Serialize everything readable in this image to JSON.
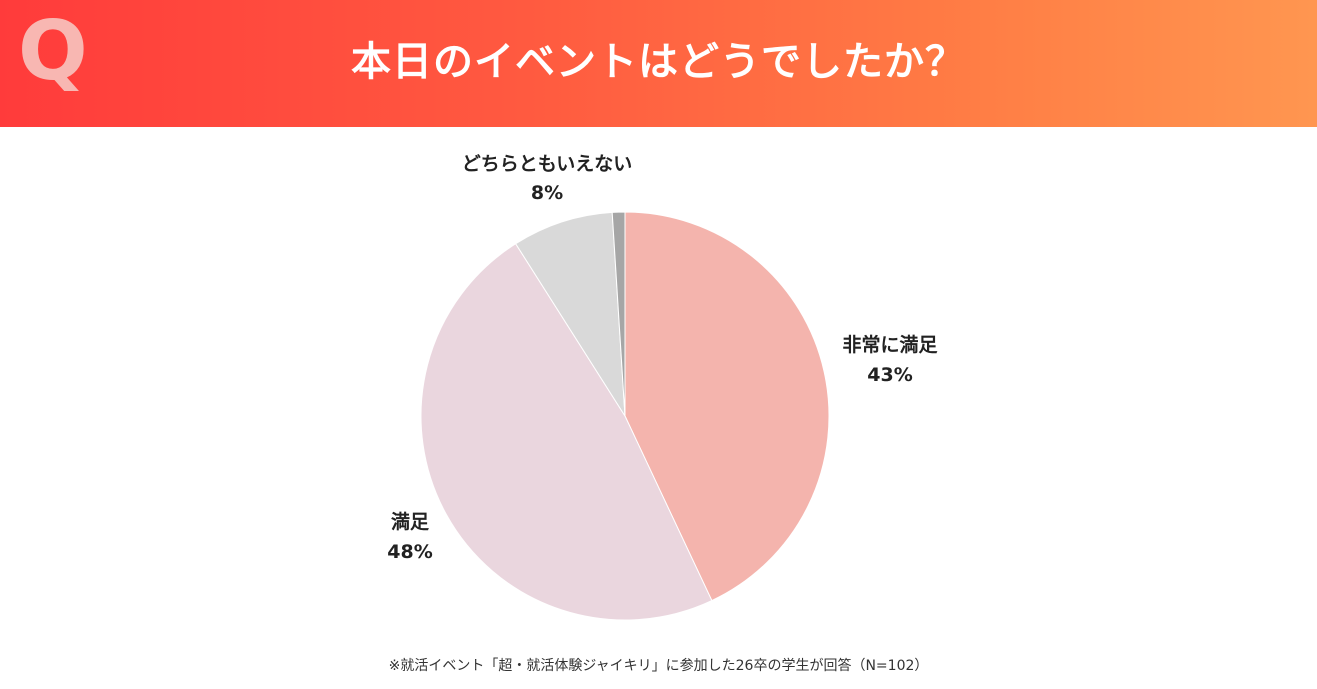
{
  "header": {
    "q_mark": "Q",
    "title": "本日のイベントはどうでしたか？"
  },
  "chart_data": {
    "type": "pie",
    "title": "本日のイベントはどうでしたか？",
    "slices": [
      {
        "label": "非常に満足",
        "value": 43,
        "value_label": "43%",
        "color": "#f4b4ad"
      },
      {
        "label": "満足",
        "value": 48,
        "value_label": "48%",
        "color": "#ead6de"
      },
      {
        "label": "どちらともいえない",
        "value": 8,
        "value_label": "8%",
        "color": "#d9d9d9"
      },
      {
        "label": "",
        "value": 1,
        "value_label": "",
        "color": "#a6a6a6"
      }
    ],
    "start": "12 o'clock",
    "direction": "clockwise"
  },
  "footnote": "※就活イベント「超・就活体験ジャイキリ」に参加した26卒の学生が回答（N=102）"
}
